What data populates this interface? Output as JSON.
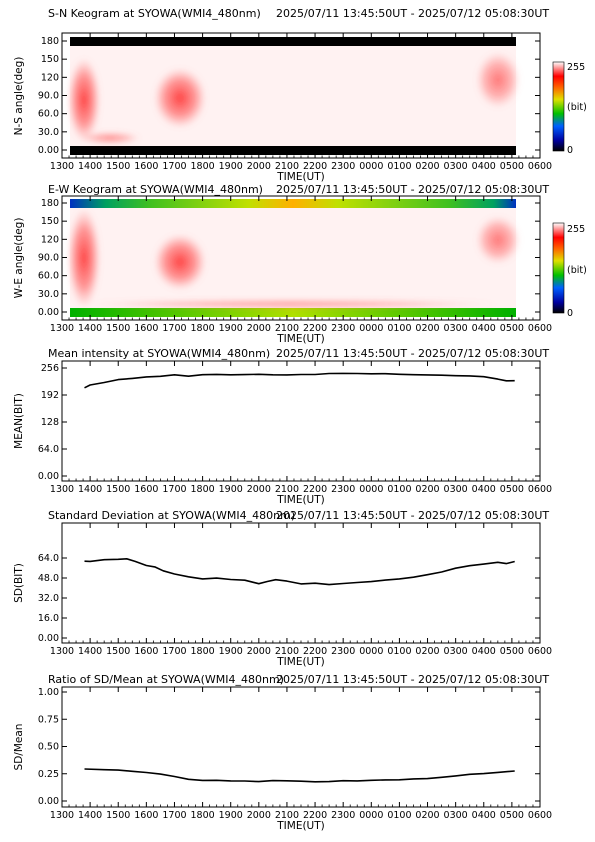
{
  "x_tick_labels": [
    "1300",
    "1400",
    "1500",
    "1600",
    "1700",
    "1800",
    "1900",
    "2000",
    "2100",
    "2200",
    "2300",
    "0000",
    "0100",
    "0200",
    "0300",
    "0400",
    "0500",
    "0600"
  ],
  "x_axis_label": "TIME(UT)",
  "colorbar": {
    "top_label": "255",
    "unit_label": "(bit)",
    "bottom_label": "0"
  },
  "panels": [
    {
      "title": "S-N Keogram at SYOWA(WMI4_480nm)",
      "time_range": "2025/07/11 13:45:50UT - 2025/07/12 05:08:30UT",
      "ylabel": "N-S angle(deg)",
      "yticks": [
        "0.00",
        "30.0",
        "60.0",
        "90.0",
        "120",
        "150",
        "180"
      ]
    },
    {
      "title": "E-W Keogram at SYOWA(WMI4_480nm)",
      "time_range": "2025/07/11 13:45:50UT - 2025/07/12 05:08:30UT",
      "ylabel": "W-E angle(deg)",
      "yticks": [
        "0.00",
        "30.0",
        "60.0",
        "90.0",
        "120",
        "150",
        "180"
      ]
    },
    {
      "title": "Mean intensity at SYOWA(WMI4_480nm)",
      "time_range": "2025/07/11 13:45:50UT - 2025/07/12 05:08:30UT",
      "ylabel": "MEAN(BIT)",
      "yticks": [
        "0.00",
        "64.0",
        "128",
        "192",
        "256"
      ]
    },
    {
      "title": "Standard Deviation at SYOWA(WMI4_480nm)",
      "time_range": "2025/07/11 13:45:50UT - 2025/07/12 05:08:30UT",
      "ylabel": "SD(BIT)",
      "yticks": [
        "0.00",
        "16.0",
        "32.0",
        "48.0",
        "64.0"
      ]
    },
    {
      "title": "Ratio of SD/Mean at SYOWA(WMI4_480nm)",
      "time_range": "2025/07/11 13:45:50UT - 2025/07/12 05:08:30UT",
      "ylabel": "SD/Mean",
      "yticks": [
        "0.00",
        "0.25",
        "0.50",
        "0.75",
        "1.00"
      ]
    }
  ],
  "chart_data": [
    {
      "type": "heatmap",
      "title": "S-N Keogram at SYOWA(WMI4_480nm)",
      "xlabel": "TIME(UT)",
      "ylabel": "N-S angle(deg)",
      "xlim": [
        13,
        30
      ],
      "ylim": [
        0,
        180
      ],
      "data_range": [
        13.764,
        29.142
      ],
      "color_range": [
        0,
        255
      ],
      "bright_regions": [
        {
          "x": [
            13.76,
            14.3
          ],
          "y": [
            15,
            160
          ],
          "intensity": 210
        },
        {
          "x": [
            16.6,
            17.7
          ],
          "y": [
            20,
            100
          ],
          "intensity": 180
        },
        {
          "x": [
            27.8,
            29.14
          ],
          "y": [
            60,
            170
          ],
          "intensity": 150
        }
      ],
      "background_intensity": 245
    },
    {
      "type": "heatmap",
      "title": "E-W Keogram at SYOWA(WMI4_480nm)",
      "xlabel": "TIME(UT)",
      "ylabel": "W-E angle(deg)",
      "xlim": [
        13,
        30
      ],
      "ylim": [
        0,
        180
      ],
      "data_range": [
        13.764,
        29.142
      ],
      "color_range": [
        0,
        255
      ],
      "bright_regions": [
        {
          "x": [
            13.76,
            14.3
          ],
          "y": [
            10,
            170
          ],
          "intensity": 210
        },
        {
          "x": [
            16.6,
            17.7
          ],
          "y": [
            30,
            110
          ],
          "intensity": 180
        },
        {
          "x": [
            27.8,
            29.14
          ],
          "y": [
            90,
            170
          ],
          "intensity": 150
        }
      ],
      "background_intensity": 245
    },
    {
      "type": "line",
      "title": "Mean intensity at SYOWA(WMI4_480nm)",
      "xlabel": "TIME(UT)",
      "ylabel": "MEAN(BIT)",
      "xlim": [
        13,
        30
      ],
      "ylim": [
        0,
        256
      ],
      "x": [
        13.8,
        14.0,
        14.5,
        15.0,
        15.5,
        16.0,
        16.5,
        17.0,
        17.5,
        18.0,
        18.5,
        19.0,
        19.5,
        20.0,
        20.5,
        21.0,
        21.5,
        22.0,
        22.5,
        23.0,
        23.5,
        24.0,
        24.5,
        25.0,
        25.5,
        26.0,
        26.5,
        27.0,
        27.5,
        28.0,
        28.5,
        28.8,
        29.1
      ],
      "y": [
        210,
        216,
        222,
        227,
        231,
        234,
        236,
        239,
        236,
        240,
        240,
        241,
        241,
        242,
        241,
        241,
        242,
        242,
        242,
        242,
        242,
        242,
        241,
        240,
        240,
        240,
        239,
        238,
        238,
        236,
        230,
        226,
        227
      ]
    },
    {
      "type": "line",
      "title": "Standard Deviation at SYOWA(WMI4_480nm)",
      "xlabel": "TIME(UT)",
      "ylabel": "SD(BIT)",
      "xlim": [
        13,
        30
      ],
      "ylim": [
        0,
        64
      ],
      "x": [
        13.8,
        14.0,
        14.5,
        15.0,
        15.3,
        15.6,
        16.0,
        16.3,
        16.6,
        17.0,
        17.5,
        18.0,
        18.5,
        19.0,
        19.5,
        20.0,
        20.3,
        20.6,
        21.0,
        21.5,
        22.0,
        22.5,
        23.0,
        23.5,
        24.0,
        24.5,
        25.0,
        25.5,
        26.0,
        26.5,
        27.0,
        27.5,
        28.0,
        28.5,
        28.8,
        29.1
      ],
      "y": [
        61.5,
        61.2,
        62.3,
        62.8,
        63.0,
        61.0,
        58.0,
        56.5,
        54.0,
        51.5,
        49.0,
        47.5,
        48.0,
        47.0,
        46.5,
        43.5,
        45.0,
        46.5,
        45.5,
        43.0,
        43.5,
        42.5,
        43.5,
        44.5,
        45.5,
        46.5,
        47.5,
        49.0,
        51.0,
        53.0,
        56.0,
        57.5,
        59.0,
        60.5,
        59.5,
        61.0
      ]
    },
    {
      "type": "line",
      "title": "Ratio of SD/Mean at SYOWA(WMI4_480nm)",
      "xlabel": "TIME(UT)",
      "ylabel": "SD/Mean",
      "xlim": [
        13,
        30
      ],
      "ylim": [
        0,
        1
      ],
      "x": [
        13.8,
        14.5,
        15.0,
        15.5,
        16.0,
        16.5,
        17.0,
        17.5,
        18.0,
        18.5,
        19.0,
        19.5,
        20.0,
        20.5,
        21.0,
        21.5,
        22.0,
        22.5,
        23.0,
        23.5,
        24.0,
        24.5,
        25.0,
        25.5,
        26.0,
        26.5,
        27.0,
        27.5,
        28.0,
        28.5,
        29.1
      ],
      "y": [
        0.29,
        0.285,
        0.28,
        0.27,
        0.26,
        0.245,
        0.225,
        0.205,
        0.195,
        0.195,
        0.19,
        0.185,
        0.18,
        0.185,
        0.185,
        0.18,
        0.175,
        0.175,
        0.18,
        0.18,
        0.19,
        0.195,
        0.2,
        0.205,
        0.21,
        0.22,
        0.235,
        0.245,
        0.25,
        0.26,
        0.27
      ]
    }
  ]
}
